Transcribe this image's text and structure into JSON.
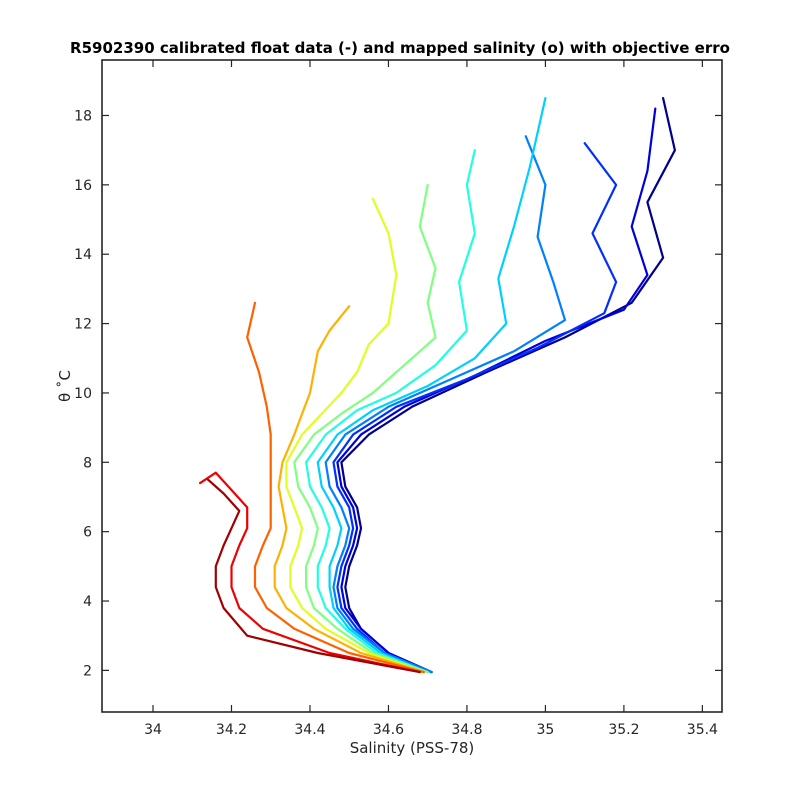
{
  "chart_data": {
    "type": "line",
    "title": "R5902390 calibrated float data (-) and mapped salinity (o) with objective erro",
    "xlabel": "Salinity (PSS-78)",
    "ylabel": "θ ˚C",
    "xlim": [
      33.87,
      35.45
    ],
    "ylim": [
      0.8,
      19.6
    ],
    "xticks": [
      "34",
      "34.2",
      "34.4",
      "34.6",
      "34.8",
      "35",
      "35.2",
      "35.4"
    ],
    "yticks": [
      "2",
      "4",
      "6",
      "8",
      "10",
      "12",
      "14",
      "16",
      "18"
    ],
    "xtick_values": [
      34,
      34.2,
      34.4,
      34.6,
      34.8,
      35,
      35.2,
      35.4
    ],
    "ytick_values": [
      2,
      4,
      6,
      8,
      10,
      12,
      14,
      16,
      18
    ],
    "grid": false,
    "colormap": "jet",
    "color_meaning": "profile number (blue = early profiles, dark red = late profiles)",
    "series": [
      {
        "color": "#00008f",
        "points": [
          [
            34.71,
            1.95
          ],
          [
            34.6,
            2.5
          ],
          [
            34.53,
            3.2
          ],
          [
            34.5,
            3.8
          ],
          [
            34.49,
            4.4
          ],
          [
            34.5,
            5.0
          ],
          [
            34.52,
            5.6
          ],
          [
            34.53,
            6.1
          ],
          [
            34.52,
            6.7
          ],
          [
            34.49,
            7.3
          ],
          [
            34.48,
            8.0
          ],
          [
            34.55,
            8.8
          ],
          [
            34.66,
            9.6
          ],
          [
            34.85,
            10.6
          ],
          [
            35.05,
            11.6
          ],
          [
            35.22,
            12.6
          ],
          [
            35.3,
            13.9
          ],
          [
            35.26,
            15.5
          ],
          [
            35.33,
            17.0
          ],
          [
            35.3,
            18.5
          ]
        ]
      },
      {
        "color": "#0000df",
        "points": [
          [
            34.71,
            1.95
          ],
          [
            34.6,
            2.5
          ],
          [
            34.53,
            3.2
          ],
          [
            34.49,
            3.8
          ],
          [
            34.48,
            4.4
          ],
          [
            34.49,
            5.0
          ],
          [
            34.51,
            5.6
          ],
          [
            34.52,
            6.1
          ],
          [
            34.51,
            6.7
          ],
          [
            34.48,
            7.3
          ],
          [
            34.47,
            8.0
          ],
          [
            34.53,
            8.8
          ],
          [
            34.64,
            9.6
          ],
          [
            34.82,
            10.5
          ],
          [
            35.0,
            11.5
          ],
          [
            35.2,
            12.4
          ],
          [
            35.26,
            13.4
          ],
          [
            35.22,
            14.8
          ],
          [
            35.26,
            16.4
          ],
          [
            35.28,
            18.2
          ]
        ]
      },
      {
        "color": "#0030ff",
        "points": [
          [
            34.71,
            1.95
          ],
          [
            34.59,
            2.5
          ],
          [
            34.52,
            3.2
          ],
          [
            34.48,
            3.8
          ],
          [
            34.47,
            4.4
          ],
          [
            34.48,
            5.0
          ],
          [
            34.5,
            5.6
          ],
          [
            34.51,
            6.1
          ],
          [
            34.5,
            6.7
          ],
          [
            34.47,
            7.3
          ],
          [
            34.46,
            8.0
          ],
          [
            34.51,
            8.8
          ],
          [
            34.62,
            9.6
          ],
          [
            34.8,
            10.4
          ],
          [
            34.98,
            11.3
          ],
          [
            35.15,
            12.3
          ],
          [
            35.18,
            13.2
          ],
          [
            35.12,
            14.6
          ],
          [
            35.18,
            16.0
          ],
          [
            35.1,
            17.2
          ]
        ]
      },
      {
        "color": "#0080ff",
        "points": [
          [
            34.71,
            1.95
          ],
          [
            34.59,
            2.5
          ],
          [
            34.51,
            3.2
          ],
          [
            34.47,
            3.8
          ],
          [
            34.46,
            4.4
          ],
          [
            34.47,
            5.0
          ],
          [
            34.49,
            5.6
          ],
          [
            34.5,
            6.1
          ],
          [
            34.48,
            6.7
          ],
          [
            34.45,
            7.3
          ],
          [
            34.44,
            8.0
          ],
          [
            34.49,
            8.8
          ],
          [
            34.6,
            9.6
          ],
          [
            34.76,
            10.4
          ],
          [
            34.92,
            11.2
          ],
          [
            35.05,
            12.1
          ],
          [
            35.02,
            13.2
          ],
          [
            34.98,
            14.5
          ],
          [
            35.0,
            16.0
          ],
          [
            34.95,
            17.4
          ]
        ]
      },
      {
        "color": "#00d0ff",
        "points": [
          [
            34.7,
            1.95
          ],
          [
            34.58,
            2.5
          ],
          [
            34.5,
            3.2
          ],
          [
            34.46,
            3.8
          ],
          [
            34.45,
            4.4
          ],
          [
            34.45,
            5.0
          ],
          [
            34.47,
            5.6
          ],
          [
            34.48,
            6.1
          ],
          [
            34.46,
            6.7
          ],
          [
            34.43,
            7.3
          ],
          [
            34.42,
            8.0
          ],
          [
            34.47,
            8.8
          ],
          [
            34.56,
            9.5
          ],
          [
            34.7,
            10.2
          ],
          [
            34.82,
            11.0
          ],
          [
            34.9,
            12.0
          ],
          [
            34.88,
            13.3
          ],
          [
            34.92,
            14.8
          ],
          [
            34.96,
            16.5
          ],
          [
            35.0,
            18.5
          ]
        ]
      },
      {
        "color": "#20ffdf",
        "points": [
          [
            34.7,
            1.95
          ],
          [
            34.57,
            2.5
          ],
          [
            34.49,
            3.2
          ],
          [
            34.44,
            3.8
          ],
          [
            34.42,
            4.4
          ],
          [
            34.42,
            5.0
          ],
          [
            34.44,
            5.6
          ],
          [
            34.45,
            6.1
          ],
          [
            34.43,
            6.7
          ],
          [
            34.4,
            7.3
          ],
          [
            34.39,
            8.0
          ],
          [
            34.44,
            8.8
          ],
          [
            34.52,
            9.5
          ],
          [
            34.62,
            10.0
          ],
          [
            34.72,
            10.8
          ],
          [
            34.8,
            11.8
          ],
          [
            34.78,
            13.2
          ],
          [
            34.82,
            14.6
          ],
          [
            34.8,
            16.0
          ],
          [
            34.82,
            17.0
          ]
        ]
      },
      {
        "color": "#80ff80",
        "points": [
          [
            34.7,
            1.95
          ],
          [
            34.56,
            2.5
          ],
          [
            34.47,
            3.2
          ],
          [
            34.41,
            3.8
          ],
          [
            34.39,
            4.4
          ],
          [
            34.39,
            5.0
          ],
          [
            34.41,
            5.6
          ],
          [
            34.42,
            6.1
          ],
          [
            34.4,
            6.7
          ],
          [
            34.37,
            7.3
          ],
          [
            34.36,
            8.0
          ],
          [
            34.41,
            8.8
          ],
          [
            34.48,
            9.4
          ],
          [
            34.56,
            10.0
          ],
          [
            34.64,
            10.8
          ],
          [
            34.72,
            11.6
          ],
          [
            34.7,
            12.6
          ],
          [
            34.72,
            13.6
          ],
          [
            34.68,
            14.8
          ],
          [
            34.7,
            16.0
          ]
        ]
      },
      {
        "color": "#dfff20",
        "points": [
          [
            34.69,
            1.95
          ],
          [
            34.55,
            2.5
          ],
          [
            34.44,
            3.2
          ],
          [
            34.38,
            3.8
          ],
          [
            34.35,
            4.4
          ],
          [
            34.35,
            5.0
          ],
          [
            34.37,
            5.6
          ],
          [
            34.38,
            6.1
          ],
          [
            34.36,
            6.7
          ],
          [
            34.34,
            7.3
          ],
          [
            34.34,
            8.0
          ],
          [
            34.38,
            8.8
          ],
          [
            34.43,
            9.4
          ],
          [
            34.48,
            10.0
          ],
          [
            34.52,
            10.6
          ],
          [
            34.55,
            11.4
          ],
          [
            34.6,
            12.0
          ],
          [
            34.62,
            13.4
          ],
          [
            34.6,
            14.6
          ],
          [
            34.56,
            15.6
          ]
        ]
      },
      {
        "color": "#ffb000",
        "points": [
          [
            34.69,
            1.95
          ],
          [
            34.53,
            2.5
          ],
          [
            34.41,
            3.2
          ],
          [
            34.34,
            3.8
          ],
          [
            34.31,
            4.4
          ],
          [
            34.31,
            5.0
          ],
          [
            34.33,
            5.6
          ],
          [
            34.34,
            6.1
          ],
          [
            34.33,
            6.7
          ],
          [
            34.32,
            7.3
          ],
          [
            34.33,
            8.0
          ],
          [
            34.36,
            8.8
          ],
          [
            34.38,
            9.4
          ],
          [
            34.4,
            10.0
          ],
          [
            34.41,
            10.6
          ],
          [
            34.42,
            11.2
          ],
          [
            34.45,
            11.8
          ],
          [
            34.5,
            12.5
          ]
        ]
      },
      {
        "color": "#ff6000",
        "points": [
          [
            34.69,
            1.95
          ],
          [
            34.5,
            2.5
          ],
          [
            34.36,
            3.2
          ],
          [
            34.29,
            3.8
          ],
          [
            34.26,
            4.4
          ],
          [
            34.26,
            5.0
          ],
          [
            34.28,
            5.6
          ],
          [
            34.3,
            6.1
          ],
          [
            34.3,
            6.7
          ],
          [
            34.3,
            7.3
          ],
          [
            34.3,
            8.0
          ],
          [
            34.3,
            8.8
          ],
          [
            34.29,
            9.6
          ],
          [
            34.27,
            10.6
          ],
          [
            34.24,
            11.6
          ],
          [
            34.26,
            12.6
          ]
        ]
      },
      {
        "color": "#ef0000",
        "points": [
          [
            34.68,
            1.95
          ],
          [
            34.45,
            2.5
          ],
          [
            34.28,
            3.2
          ],
          [
            34.22,
            3.8
          ],
          [
            34.2,
            4.4
          ],
          [
            34.2,
            5.0
          ],
          [
            34.22,
            5.6
          ],
          [
            34.24,
            6.1
          ],
          [
            34.24,
            6.7
          ],
          [
            34.2,
            7.2
          ],
          [
            34.16,
            7.7
          ],
          [
            34.12,
            7.4
          ]
        ]
      },
      {
        "color": "#a00000",
        "points": [
          [
            34.68,
            1.95
          ],
          [
            34.42,
            2.5
          ],
          [
            34.24,
            3.0
          ],
          [
            34.18,
            3.8
          ],
          [
            34.16,
            4.4
          ],
          [
            34.16,
            5.0
          ],
          [
            34.18,
            5.6
          ],
          [
            34.2,
            6.1
          ],
          [
            34.22,
            6.6
          ],
          [
            34.18,
            7.1
          ],
          [
            34.14,
            7.5
          ]
        ]
      }
    ]
  }
}
